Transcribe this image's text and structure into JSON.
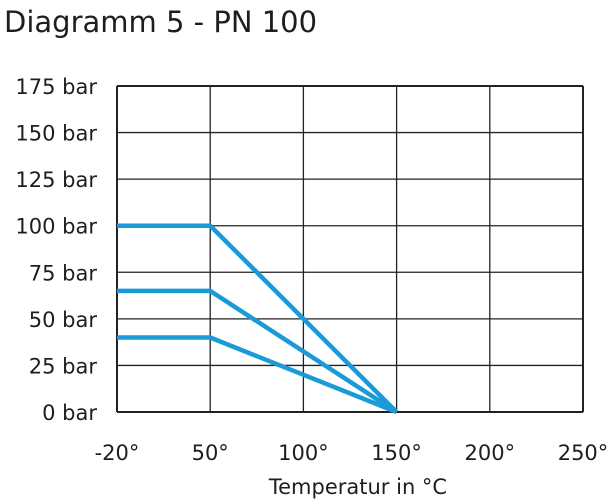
{
  "chart_data": {
    "type": "line",
    "title": "Diagramm 5 - PN 100",
    "xlabel": "Temperatur in °C",
    "ylabel": "",
    "x_ticks": [
      -20,
      50,
      100,
      150,
      200,
      250
    ],
    "x_tick_labels": [
      "-20°",
      "50°",
      "100°",
      "150°",
      "200°",
      "250°"
    ],
    "y_ticks": [
      0,
      25,
      50,
      75,
      100,
      125,
      150,
      175
    ],
    "y_tick_labels": [
      "0 bar",
      "25 bar",
      "50 bar",
      "75 bar",
      "100 bar",
      "125 bar",
      "150 bar",
      "175 bar"
    ],
    "xlim": [
      -20,
      250
    ],
    "ylim": [
      0,
      175
    ],
    "grid": true,
    "series_color": "#1a9ad6",
    "series": [
      {
        "x": [
          -20,
          50,
          150
        ],
        "y": [
          100,
          100,
          0
        ]
      },
      {
        "x": [
          -20,
          50,
          150
        ],
        "y": [
          65,
          65,
          0
        ]
      },
      {
        "x": [
          -20,
          50,
          150
        ],
        "y": [
          40,
          40,
          0
        ]
      }
    ]
  }
}
